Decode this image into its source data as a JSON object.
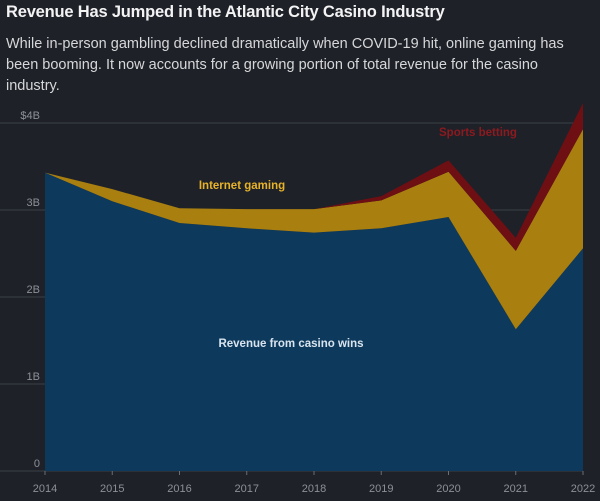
{
  "header": {
    "title": "Revenue Has Jumped in the Atlantic City Casino Industry",
    "subtitle": "While in-person gambling declined dramatically when COVID-19 hit, online gaming has been booming. It now accounts for a growing portion of total revenue for the casino industry."
  },
  "colors": {
    "background": "#1e2128",
    "casino": "#0d3a5c",
    "internet": "#a97f10",
    "sports": "#6e0f14",
    "grid": "#3a3e46",
    "axis_text": "#8d9096"
  },
  "chart_data": {
    "type": "area",
    "stacked": true,
    "x": [
      "2014",
      "2015",
      "2016",
      "2017",
      "2018",
      "2019",
      "2020",
      "2021",
      "2022"
    ],
    "y_ticks": [
      "0",
      "1B",
      "2B",
      "3B",
      "$4B"
    ],
    "y_tick_values": [
      0,
      1,
      2,
      3,
      4
    ],
    "ylim": [
      0,
      4.3
    ],
    "grid": true,
    "series": [
      {
        "name": "Revenue from casino wins",
        "values": [
          3.43,
          3.1,
          2.85,
          2.79,
          2.74,
          2.79,
          2.92,
          1.63,
          2.56
        ]
      },
      {
        "name": "Internet gaming",
        "values": [
          0.0,
          0.14,
          0.17,
          0.22,
          0.27,
          0.32,
          0.52,
          0.9,
          1.37
        ]
      },
      {
        "name": "Sports betting",
        "values": [
          0.0,
          0.0,
          0.0,
          0.0,
          0.0,
          0.05,
          0.13,
          0.15,
          0.3
        ]
      }
    ],
    "annotations": [
      {
        "text": "Internet gaming",
        "series": "Internet gaming"
      },
      {
        "text": "Sports betting",
        "series": "Sports betting"
      },
      {
        "text": "Revenue from casino wins",
        "series": "Revenue from casino wins"
      }
    ]
  }
}
